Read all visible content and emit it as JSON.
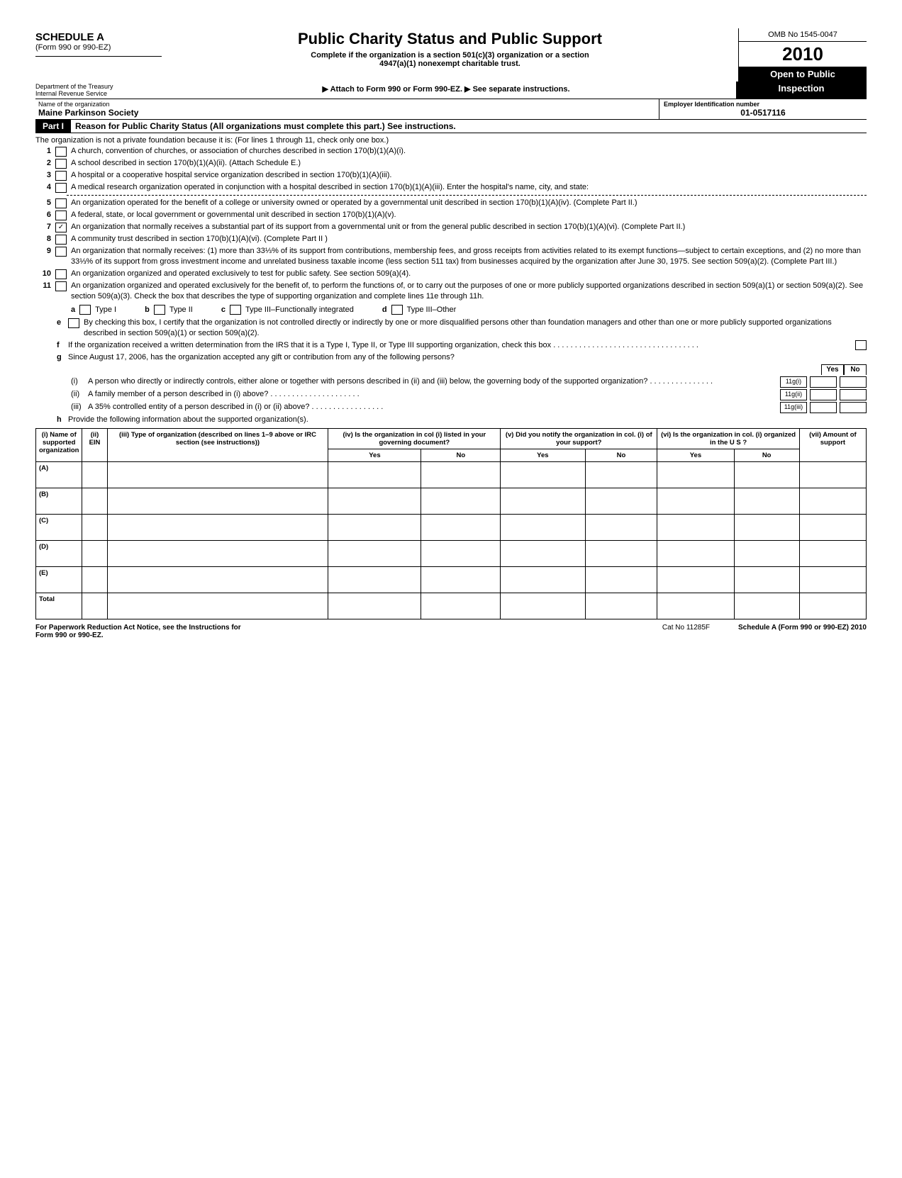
{
  "header": {
    "schedule": "SCHEDULE A",
    "form_ref": "(Form 990 or 990-EZ)",
    "title": "Public Charity Status and Public Support",
    "subtitle1": "Complete if the organization is a section 501(c)(3) organization or a section",
    "subtitle2": "4947(a)(1) nonexempt charitable trust.",
    "attach": "▶ Attach to Form 990 or Form 990-EZ. ▶ See separate instructions.",
    "omb": "OMB No 1545-0047",
    "year_prefix": "20",
    "year_bold": "10",
    "open": "Open to Public",
    "inspection": "Inspection",
    "dept1": "Department of the Treasury",
    "dept2": "Internal Revenue Service"
  },
  "org": {
    "name_label": "Name of the organization",
    "name": "Maine Parkinson Society",
    "ein_label": "Employer Identification number",
    "ein": "01-0517116"
  },
  "part1": {
    "tag": "Part I",
    "title": "Reason for Public Charity Status (All organizations must complete this part.) See instructions.",
    "intro": "The organization is not a private foundation because it is: (For lines 1 through 11, check only one box.)",
    "lines": [
      {
        "n": "1",
        "text": "A church, convention of churches, or association of churches described in section 170(b)(1)(A)(i)."
      },
      {
        "n": "2",
        "text": "A school described in section 170(b)(1)(A)(ii). (Attach Schedule E.)"
      },
      {
        "n": "3",
        "text": "A hospital or a cooperative hospital service organization described in section 170(b)(1)(A)(iii)."
      },
      {
        "n": "4",
        "text": "A medical research organization operated in conjunction with a hospital described in section 170(b)(1)(A)(iii). Enter the hospital's name, city, and state:"
      },
      {
        "n": "5",
        "text": "An organization operated for the benefit of a college or university owned or operated by a governmental unit described in section 170(b)(1)(A)(iv). (Complete Part II.)"
      },
      {
        "n": "6",
        "text": "A federal, state, or local government or governmental unit described in section 170(b)(1)(A)(v)."
      },
      {
        "n": "7",
        "checked": true,
        "text": "An organization that normally receives a substantial part of its support from a governmental unit or from the general public described in section 170(b)(1)(A)(vi). (Complete Part II.)"
      },
      {
        "n": "8",
        "text": "A community trust described in section 170(b)(1)(A)(vi). (Complete Part II )"
      },
      {
        "n": "9",
        "text": "An organization that normally receives: (1) more than 33⅓% of its support from contributions, membership fees, and gross receipts from activities related to its exempt functions—subject to certain exceptions, and (2) no more than 33⅓% of its support from gross investment income and unrelated business taxable income (less section 511 tax) from businesses acquired by the organization after June 30, 1975. See section 509(a)(2). (Complete Part III.)"
      },
      {
        "n": "10",
        "text": "An organization organized and operated exclusively to test for public safety. See section 509(a)(4)."
      },
      {
        "n": "11",
        "text": "An organization organized and operated exclusively for the benefit of, to perform the functions of, or to carry out the purposes of one or more publicly supported organizations described in section 509(a)(1) or section 509(a)(2). See section 509(a)(3). Check the box that describes the type of supporting organization and complete lines 11e through 11h."
      }
    ],
    "types": {
      "a": "Type I",
      "b": "Type II",
      "c": "Type III–Functionally integrated",
      "d": "Type III–Other"
    },
    "e": "By checking this box, I certify that the organization is not controlled directly or indirectly by one or more disqualified persons other than foundation managers and other than one or more publicly supported organizations described in section 509(a)(1) or section 509(a)(2).",
    "f": "If the organization received a written determination from the IRS that it is a Type I, Type II, or Type III supporting organization, check this box  .   .   .   .   .   .   .   .   .   .   .   .   .   .   .   .   .   .   .   .   .   .   .   .   .   .   .   .   .   .   .   .   .   .",
    "g_intro": "Since August 17, 2006, has the organization accepted any gift or contribution from any of the following persons?",
    "g_i": "A person who directly or indirectly controls, either alone or together with persons described in (ii) and (iii) below, the governing body of the supported organization?  .   .   .   .   .   .   .   .   .   .   .   .   .   .   .",
    "g_ii": "A family member of a person described in (i) above?  .   .   .   .   .   .   .   .   .   .   .   .   .   .   .   .   .   .   .   .   .",
    "g_iii": "A 35% controlled entity of a person described in (i) or (ii) above?  .   .   .   .   .   .   .   .   .   .   .   .   .   .   .   .   .",
    "g_cells": {
      "i": "11g(i)",
      "ii": "11g(ii)",
      "iii": "11g(iii)"
    },
    "h": "Provide the following information about the supported organization(s).",
    "yes": "Yes",
    "no": "No"
  },
  "support_table": {
    "cols": [
      "(i) Name of supported organization",
      "(ii) EIN",
      "(iii) Type of organization (described on lines 1–9 above or IRC section (see instructions))",
      "(iv) Is the organization in col (i) listed in your governing document?",
      "(v) Did you notify the organization in col. (i) of your support?",
      "(vi) Is the organization in col. (i) organized in the U S ?",
      "(vii) Amount of support"
    ],
    "yes": "Yes",
    "no": "No",
    "rows": [
      "(A)",
      "(B)",
      "(C)",
      "(D)",
      "(E)"
    ],
    "total": "Total"
  },
  "footer": {
    "left1": "For Paperwork Reduction Act Notice, see the Instructions for",
    "left2": "Form 990 or 990-EZ.",
    "cat": "Cat No 11285F",
    "right": "Schedule A (Form 990 or 990-EZ) 2010"
  }
}
